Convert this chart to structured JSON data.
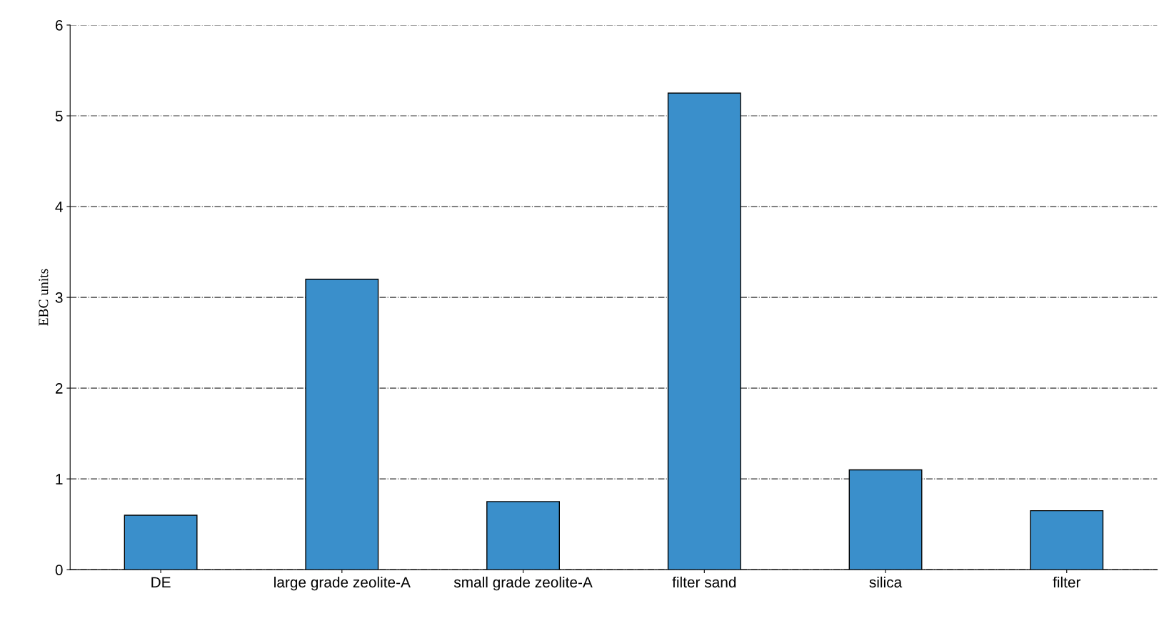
{
  "chart_data": {
    "type": "bar",
    "ylabel": "EBC units",
    "categories": [
      "DE",
      "large grade zeolite-A",
      "small grade zeolite-A",
      "filter sand",
      "silica",
      "filter"
    ],
    "values": [
      0.6,
      3.2,
      0.75,
      5.25,
      1.1,
      0.65
    ],
    "color": "#3a8fcb",
    "ylim": [
      0,
      6
    ],
    "yticks": [
      0,
      1,
      2,
      3,
      4,
      5,
      6
    ],
    "grid": "y",
    "legend": false
  }
}
